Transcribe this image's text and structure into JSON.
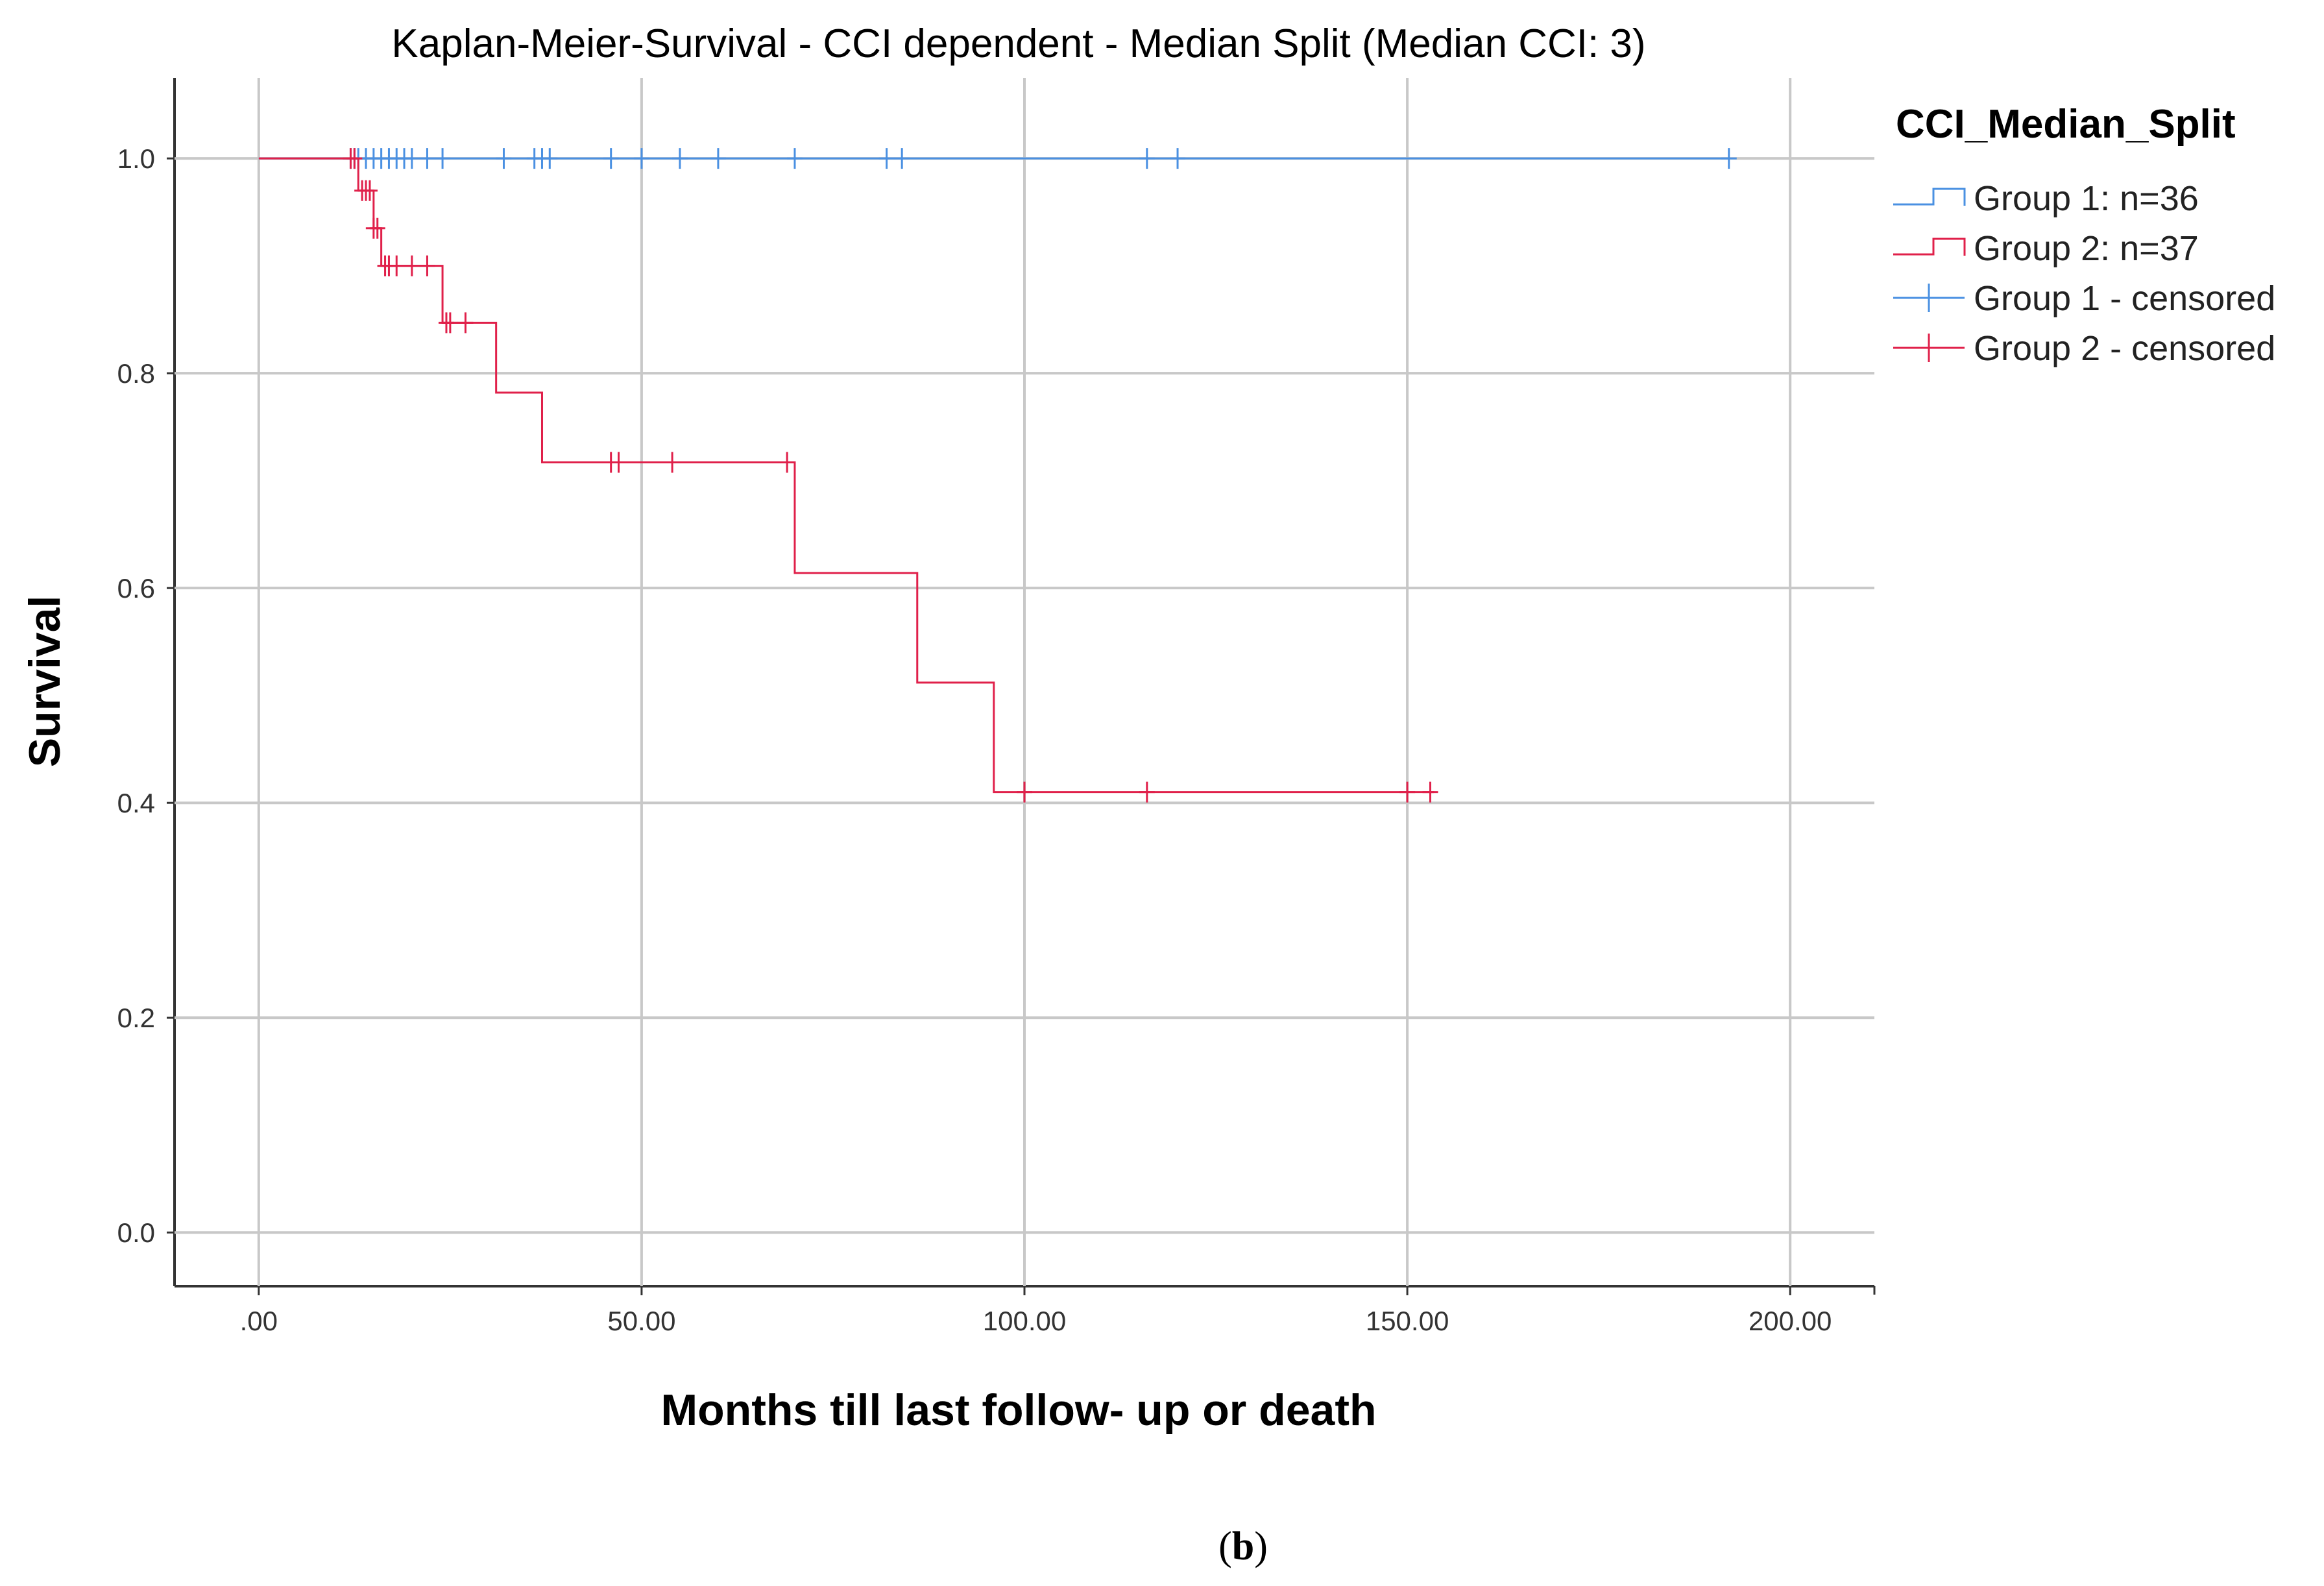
{
  "caption": {
    "open": "(",
    "label": "b",
    "close": ")"
  },
  "chart_data": {
    "type": "line",
    "subtype": "kaplan-meier",
    "title": "Kaplan-Meier-Survival - CCI dependent - Median Split (Median CCI: 3)",
    "xlabel": "Months till last follow- up or death",
    "ylabel": "Survival",
    "xlim": [
      -11,
      211
    ],
    "ylim": [
      -0.05,
      1.075
    ],
    "xticks": [
      0,
      50,
      100,
      150,
      200
    ],
    "xtick_labels": [
      ".00",
      "50.00",
      "100.00",
      "150.00",
      "200.00"
    ],
    "yticks": [
      0,
      0.2,
      0.4,
      0.6,
      0.8,
      1.0
    ],
    "ytick_labels": [
      "0.0",
      "0.2",
      "0.4",
      "0.6",
      "0.8",
      "1.0"
    ],
    "grid": true,
    "legend": {
      "title": "CCI_Median_Split",
      "position": "right",
      "entries": [
        {
          "label": "Group 1: n=36",
          "kind": "step",
          "color": "#4a90e2"
        },
        {
          "label": "Group 2: n=37",
          "kind": "step",
          "color": "#e0204a"
        },
        {
          "label": "Group 1 - censored",
          "kind": "censor",
          "color": "#4a90e2"
        },
        {
          "label": "Group 2 - censored",
          "kind": "censor",
          "color": "#e0204a"
        }
      ]
    },
    "series": [
      {
        "name": "Group 1: n=36",
        "color": "#4a90e2",
        "steps": [
          [
            0,
            1.0
          ],
          [
            192,
            1.0
          ]
        ],
        "censored": [
          [
            12,
            1.0
          ],
          [
            12.5,
            1.0
          ],
          [
            13,
            1.0
          ],
          [
            14,
            1.0
          ],
          [
            15,
            1.0
          ],
          [
            16,
            1.0
          ],
          [
            17,
            1.0
          ],
          [
            18,
            1.0
          ],
          [
            19,
            1.0
          ],
          [
            20,
            1.0
          ],
          [
            22,
            1.0
          ],
          [
            24,
            1.0
          ],
          [
            32,
            1.0
          ],
          [
            36,
            1.0
          ],
          [
            37,
            1.0
          ],
          [
            38,
            1.0
          ],
          [
            46,
            1.0
          ],
          [
            50,
            1.0
          ],
          [
            55,
            1.0
          ],
          [
            60,
            1.0
          ],
          [
            70,
            1.0
          ],
          [
            82,
            1.0
          ],
          [
            84,
            1.0
          ],
          [
            116,
            1.0
          ],
          [
            120,
            1.0
          ],
          [
            192,
            1.0
          ]
        ]
      },
      {
        "name": "Group 2: n=37",
        "color": "#e0204a",
        "steps": [
          [
            0,
            1.0
          ],
          [
            13,
            0.97
          ],
          [
            15,
            0.935
          ],
          [
            16,
            0.9
          ],
          [
            24,
            0.847
          ],
          [
            31,
            0.782
          ],
          [
            37,
            0.717
          ],
          [
            70,
            0.614
          ],
          [
            86,
            0.512
          ],
          [
            96,
            0.41
          ],
          [
            153.5,
            0.41
          ]
        ],
        "censored": [
          [
            12,
            1.0
          ],
          [
            12.5,
            1.0
          ],
          [
            13.5,
            0.97
          ],
          [
            14,
            0.97
          ],
          [
            14.5,
            0.97
          ],
          [
            15,
            0.935
          ],
          [
            15.5,
            0.935
          ],
          [
            16.5,
            0.9
          ],
          [
            17,
            0.9
          ],
          [
            18,
            0.9
          ],
          [
            20,
            0.9
          ],
          [
            22,
            0.9
          ],
          [
            24.5,
            0.847
          ],
          [
            25,
            0.847
          ],
          [
            27,
            0.847
          ],
          [
            46,
            0.717
          ],
          [
            47,
            0.717
          ],
          [
            54,
            0.717
          ],
          [
            69,
            0.717
          ],
          [
            100,
            0.41
          ],
          [
            116,
            0.41
          ],
          [
            150,
            0.41
          ],
          [
            153,
            0.41
          ]
        ]
      }
    ]
  }
}
